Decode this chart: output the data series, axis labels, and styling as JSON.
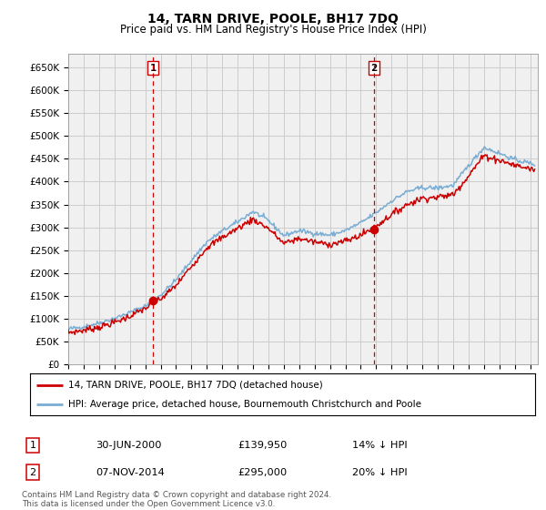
{
  "title": "14, TARN DRIVE, POOLE, BH17 7DQ",
  "subtitle": "Price paid vs. HM Land Registry's House Price Index (HPI)",
  "ylim": [
    0,
    680000
  ],
  "xlim_start": 1995.0,
  "xlim_end": 2025.5,
  "sale1_date": 2000.5,
  "sale1_price": 139950,
  "sale1_label": "1",
  "sale2_date": 2014.854,
  "sale2_price": 295000,
  "sale2_label": "2",
  "legend_entry1": "14, TARN DRIVE, POOLE, BH17 7DQ (detached house)",
  "legend_entry2": "HPI: Average price, detached house, Bournemouth Christchurch and Poole",
  "table_row1": [
    "1",
    "30-JUN-2000",
    "£139,950",
    "14% ↓ HPI"
  ],
  "table_row2": [
    "2",
    "07-NOV-2014",
    "£295,000",
    "20% ↓ HPI"
  ],
  "footnote1": "Contains HM Land Registry data © Crown copyright and database right 2024.",
  "footnote2": "This data is licensed under the Open Government Licence v3.0.",
  "hpi_color": "#7aadd4",
  "price_color": "#cc0000",
  "vline_color": "#cc0000",
  "grid_color": "#cccccc",
  "background_color": "#ffffff",
  "plot_bg_color": "#f0f0f0",
  "hpi_years": [
    1995,
    1996,
    1997,
    1998,
    1999,
    2000,
    2001,
    2002,
    2003,
    2004,
    2005,
    2006,
    2007,
    2008,
    2009,
    2010,
    2011,
    2012,
    2013,
    2014,
    2015,
    2016,
    2017,
    2018,
    2019,
    2020,
    2021,
    2022,
    2023,
    2024,
    2025.3
  ],
  "hpi_vals": [
    78000,
    83000,
    91000,
    101000,
    114000,
    128000,
    152000,
    185000,
    228000,
    268000,
    292000,
    312000,
    335000,
    315000,
    282000,
    293000,
    287000,
    283000,
    293000,
    310000,
    332000,
    358000,
    378000,
    387000,
    386000,
    392000,
    435000,
    475000,
    462000,
    448000,
    438000
  ],
  "price_years": [
    1995,
    1996,
    1997,
    1998,
    1999,
    2000,
    2001,
    2002,
    2003,
    2004,
    2005,
    2006,
    2007,
    2008,
    2009,
    2010,
    2011,
    2012,
    2013,
    2014,
    2015,
    2016,
    2017,
    2018,
    2019,
    2020,
    2021,
    2022,
    2023,
    2024,
    2025.3
  ],
  "price_vals": [
    70000,
    75000,
    82000,
    92000,
    106000,
    123000,
    143000,
    173000,
    215000,
    256000,
    278000,
    298000,
    318000,
    298000,
    265000,
    276000,
    268000,
    263000,
    270000,
    283000,
    303000,
    328000,
    350000,
    364000,
    366000,
    372000,
    413000,
    457000,
    447000,
    436000,
    426000
  ]
}
